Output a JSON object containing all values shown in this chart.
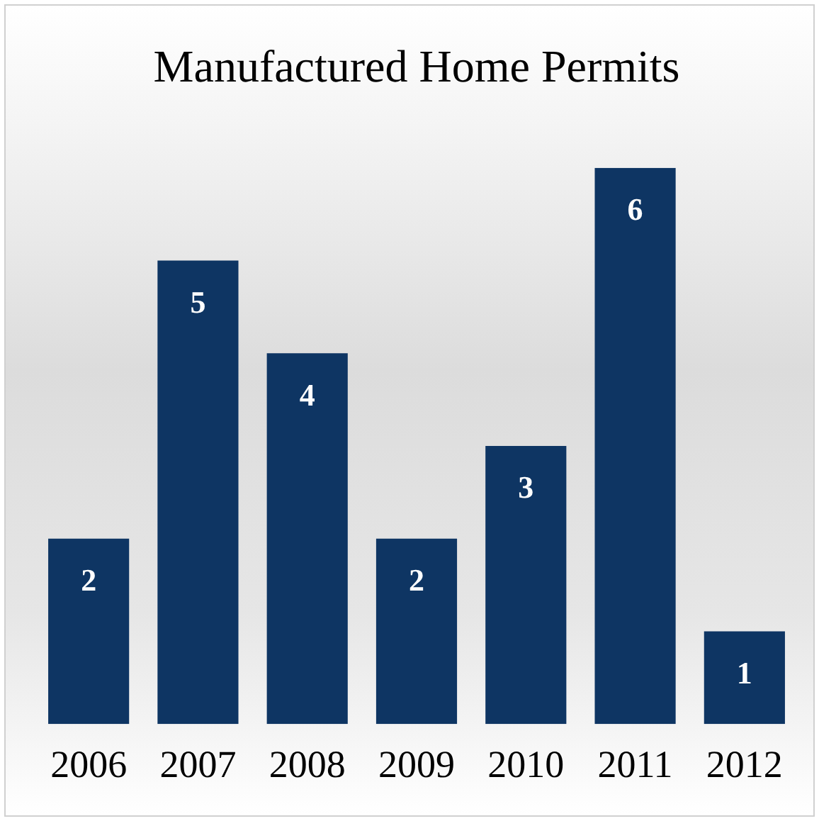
{
  "chart_data": {
    "type": "bar",
    "title": "Manufactured Home Permits",
    "categories": [
      "2006",
      "2007",
      "2008",
      "2009",
      "2010",
      "2011",
      "2012"
    ],
    "values": [
      2,
      5,
      4,
      2,
      3,
      6,
      1
    ],
    "color": "#0e3563",
    "data_labels": true,
    "grid": false,
    "legend": false
  }
}
